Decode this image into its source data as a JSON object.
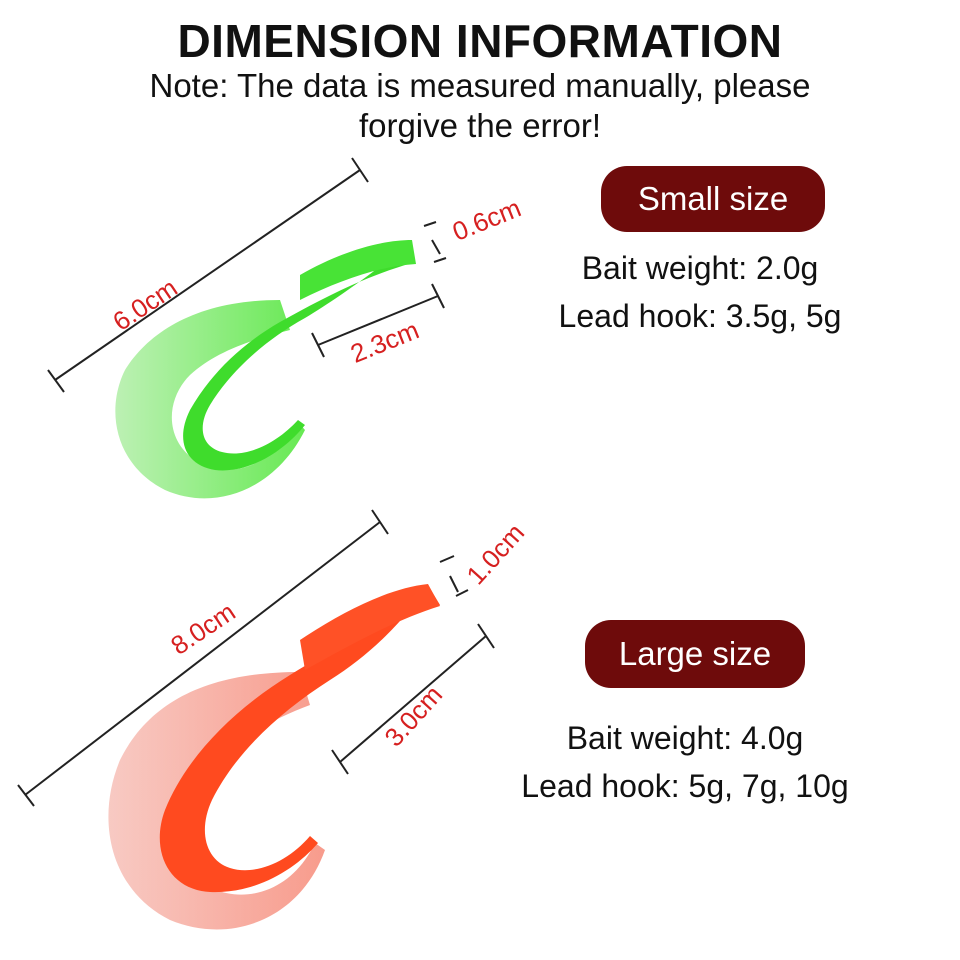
{
  "header": {
    "title": "DIMENSION INFORMATION",
    "note": "Note: The data is measured manually, please forgive the error!"
  },
  "small": {
    "label": "Small size",
    "bait_weight": "Bait weight: 2.0g",
    "lead_hook": "Lead hook: 3.5g, 5g",
    "dims": {
      "length": "6.0cm",
      "thickness": "0.6cm",
      "body": "2.3cm"
    },
    "color": "#46e23a"
  },
  "large": {
    "label": "Large size",
    "bait_weight": "Bait weight: 4.0g",
    "lead_hook": "Lead hook: 5g, 7g, 10g",
    "dims": {
      "length": "8.0cm",
      "thickness": "1.0cm",
      "body": "3.0cm"
    },
    "color": "#ff4a1f"
  },
  "colors": {
    "pill": "#6e0b0b",
    "dimension_text": "#d62020"
  }
}
